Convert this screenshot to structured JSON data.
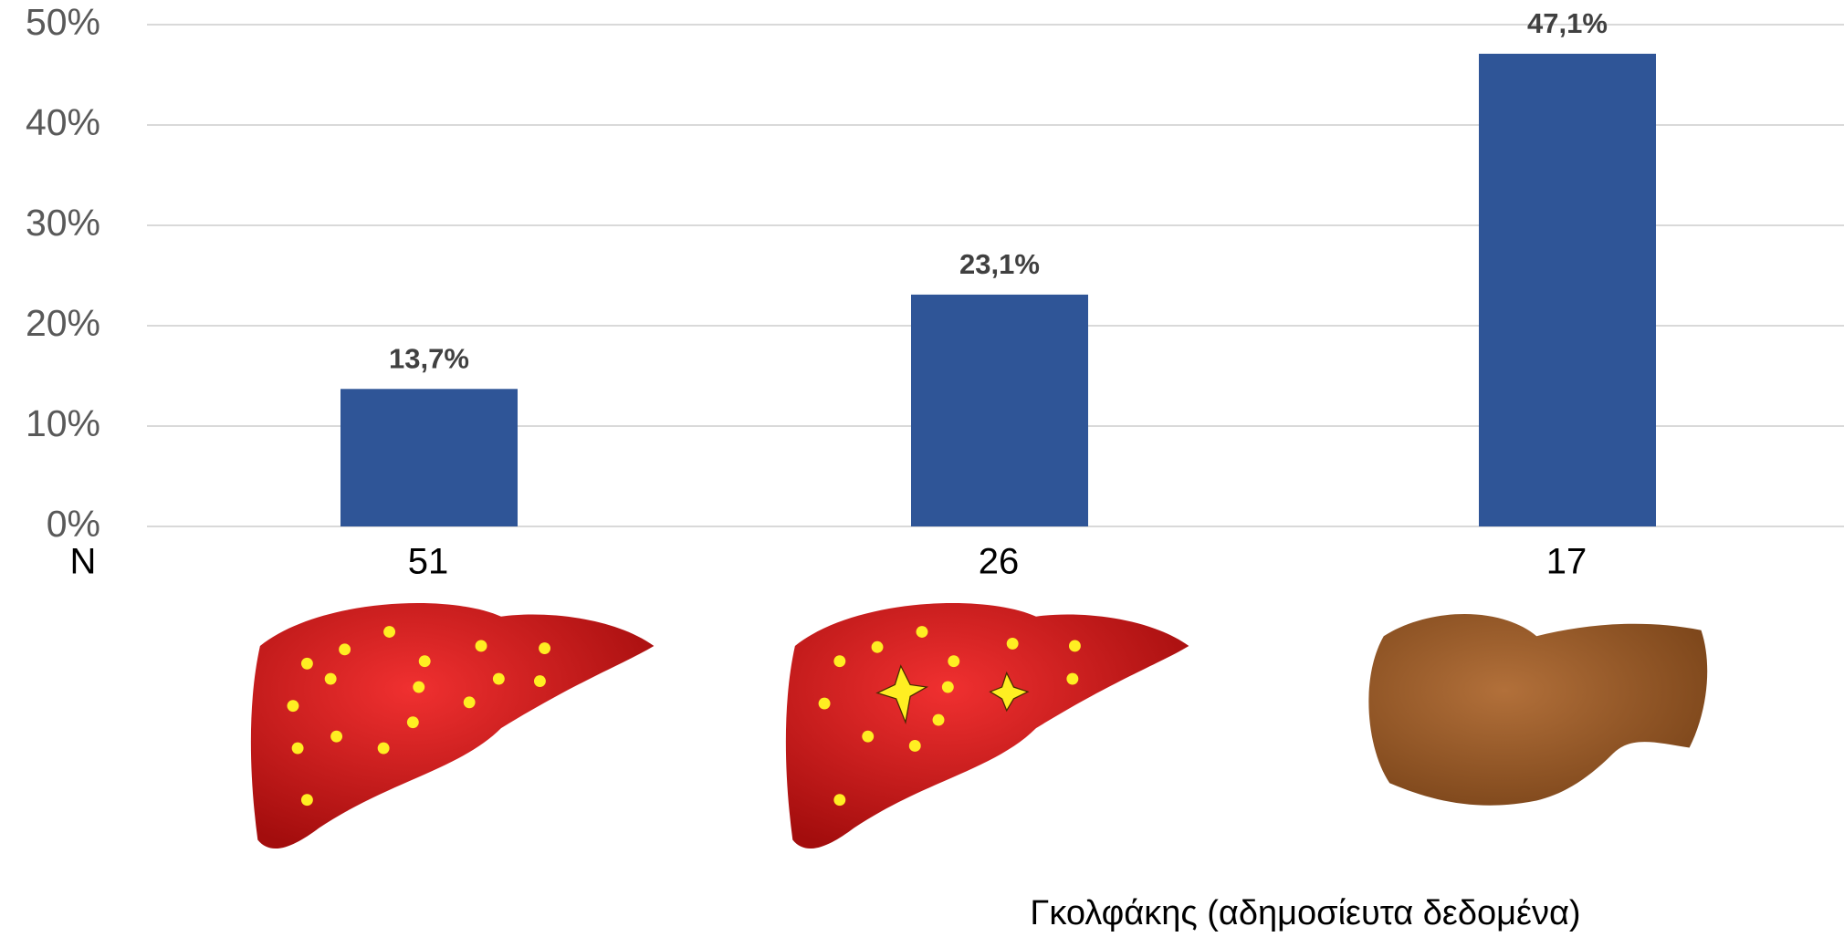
{
  "chart_data": {
    "type": "bar",
    "categories": [
      "51",
      "26",
      "17"
    ],
    "x_axis_label": "N",
    "values": [
      13.7,
      23.1,
      47.1
    ],
    "value_labels": [
      "13,7%",
      "23,1%",
      "47,1%"
    ],
    "color": "#2f5597",
    "ylim": [
      0,
      50
    ],
    "yticks": [
      {
        "value": 0,
        "label": "0%"
      },
      {
        "value": 10,
        "label": "10%"
      },
      {
        "value": 20,
        "label": "20%"
      },
      {
        "value": 30,
        "label": "30%"
      },
      {
        "value": 40,
        "label": "40%"
      },
      {
        "value": 50,
        "label": "50%"
      }
    ],
    "grid": true,
    "source": "Γκολφάκης (αδημοσίευτα δεδομένα)"
  }
}
